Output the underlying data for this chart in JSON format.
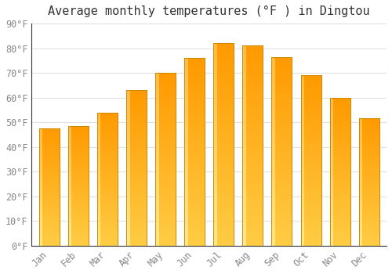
{
  "title": "Average monthly temperatures (°F ) in Dingtou",
  "months": [
    "Jan",
    "Feb",
    "Mar",
    "Apr",
    "May",
    "Jun",
    "Jul",
    "Aug",
    "Sep",
    "Oct",
    "Nov",
    "Dec"
  ],
  "values": [
    47.5,
    48.5,
    54,
    63,
    70,
    76,
    82,
    81,
    76.5,
    69,
    60,
    51.5
  ],
  "ylim": [
    0,
    90
  ],
  "yticks": [
    0,
    10,
    20,
    30,
    40,
    50,
    60,
    70,
    80,
    90
  ],
  "background_color": "#ffffff",
  "plot_bg_color": "#ffffff",
  "grid_color": "#e0e0e0",
  "bar_color_bottom": "#FFD966",
  "bar_color_mid": "#FFA500",
  "bar_color_top": "#FF9500",
  "bar_edge_color": "#cc8800",
  "title_fontsize": 11,
  "tick_fontsize": 8.5,
  "tick_color": "#888888",
  "title_color": "#333333"
}
